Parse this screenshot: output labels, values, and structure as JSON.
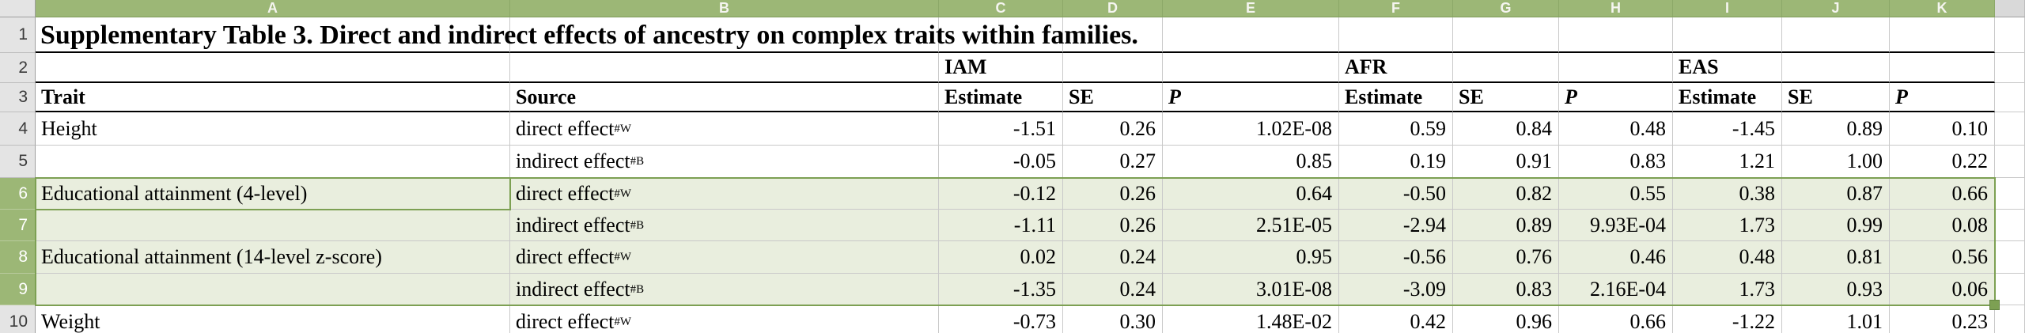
{
  "sheet": {
    "title": "Supplementary Table 3. Direct and indirect effects of ancestry on complex traits within families.",
    "column_headers": [
      "A",
      "B",
      "C",
      "D",
      "E",
      "F",
      "G",
      "H",
      "I",
      "J",
      "K"
    ],
    "row_numbers": [
      "1",
      "2",
      "3",
      "4",
      "5",
      "6",
      "7",
      "8",
      "9",
      "10"
    ],
    "group_headers": [
      {
        "column": "C",
        "label": "IAM"
      },
      {
        "column": "F",
        "label": "AFR"
      },
      {
        "column": "I",
        "label": "EAS"
      }
    ],
    "field_headers": [
      {
        "column": "A",
        "label": "Trait"
      },
      {
        "column": "B",
        "label": "Source"
      },
      {
        "column": "C",
        "label": "Estimate"
      },
      {
        "column": "D",
        "label": "SE"
      },
      {
        "column": "E",
        "label": "P",
        "italic": true
      },
      {
        "column": "F",
        "label": "Estimate"
      },
      {
        "column": "G",
        "label": "SE"
      },
      {
        "column": "H",
        "label": "P",
        "italic": true
      },
      {
        "column": "I",
        "label": "Estimate"
      },
      {
        "column": "J",
        "label": "SE"
      },
      {
        "column": "K",
        "label": "P",
        "italic": true
      }
    ],
    "data_rows": [
      {
        "row": "4",
        "trait": "Height",
        "source": "direct effect",
        "source_superscript": "#W",
        "selected": false,
        "values": {
          "C": "-1.51",
          "D": "0.26",
          "E": "1.02E-08",
          "F": "0.59",
          "G": "0.84",
          "H": "0.48",
          "I": "-1.45",
          "J": "0.89",
          "K": "0.10"
        }
      },
      {
        "row": "5",
        "trait": "",
        "source": "indirect effect",
        "source_superscript": "#B",
        "selected": false,
        "values": {
          "C": "-0.05",
          "D": "0.27",
          "E": "0.85",
          "F": "0.19",
          "G": "0.91",
          "H": "0.83",
          "I": "1.21",
          "J": "1.00",
          "K": "0.22"
        }
      },
      {
        "row": "6",
        "trait": "Educational attainment (4-level)",
        "source": "direct effect",
        "source_superscript": "#W",
        "selected": true,
        "values": {
          "C": "-0.12",
          "D": "0.26",
          "E": "0.64",
          "F": "-0.50",
          "G": "0.82",
          "H": "0.55",
          "I": "0.38",
          "J": "0.87",
          "K": "0.66"
        }
      },
      {
        "row": "7",
        "trait": "",
        "source": "indirect effect",
        "source_superscript": "#B",
        "selected": true,
        "values": {
          "C": "-1.11",
          "D": "0.26",
          "E": "2.51E-05",
          "F": "-2.94",
          "G": "0.89",
          "H": "9.93E-04",
          "I": "1.73",
          "J": "0.99",
          "K": "0.08"
        }
      },
      {
        "row": "8",
        "trait": "Educational attainment (14-level z-score)",
        "source": "direct effect",
        "source_superscript": "#W",
        "selected": true,
        "values": {
          "C": "0.02",
          "D": "0.24",
          "E": "0.95",
          "F": "-0.56",
          "G": "0.76",
          "H": "0.46",
          "I": "0.48",
          "J": "0.81",
          "K": "0.56"
        }
      },
      {
        "row": "9",
        "trait": "",
        "source": "indirect effect",
        "source_superscript": "#B",
        "selected": true,
        "values": {
          "C": "-1.35",
          "D": "0.24",
          "E": "3.01E-08",
          "F": "-3.09",
          "G": "0.83",
          "H": "2.16E-04",
          "I": "1.73",
          "J": "0.93",
          "K": "0.06"
        }
      },
      {
        "row": "10",
        "trait": "Weight",
        "source": "direct effect",
        "source_superscript": "#W",
        "selected": false,
        "values": {
          "C": "-0.73",
          "D": "0.30",
          "E": "1.48E-02",
          "F": "0.42",
          "G": "0.96",
          "H": "0.66",
          "I": "-1.22",
          "J": "1.01",
          "K": "0.23"
        }
      }
    ],
    "selection": {
      "selected_rows": [
        "6",
        "7",
        "8",
        "9"
      ],
      "active_cell": "A6",
      "range": "A6:K9"
    },
    "colors": {
      "header_green": "#9cb776",
      "selection_tint": "#e9eede",
      "selection_border": "#7da053",
      "header_gray": "#e4e4e4",
      "unused_header_gray": "#d9d9d9",
      "grid_line": "#c9c9c9",
      "thick_rule": "#000000"
    }
  }
}
